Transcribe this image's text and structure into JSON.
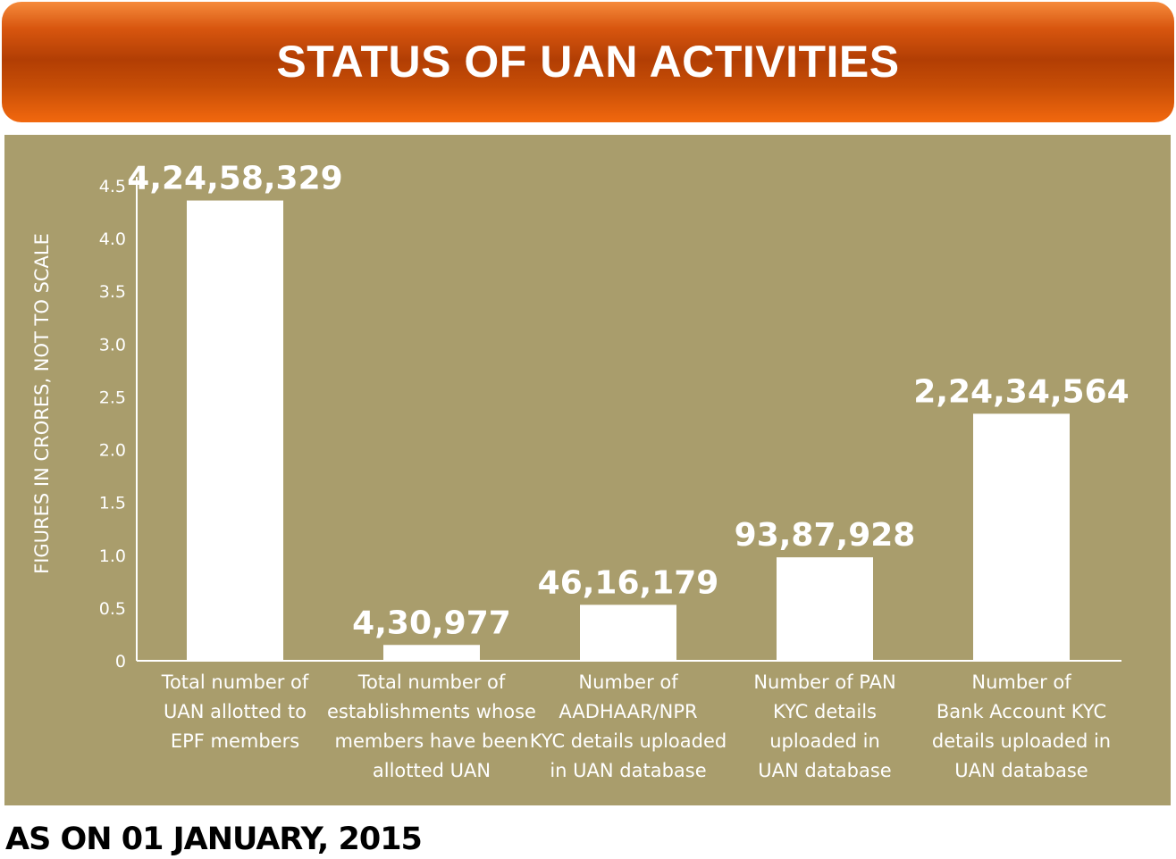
{
  "header": {
    "title": "STATUS OF UAN ACTIVITIES"
  },
  "footnote": "AS ON 01 JANUARY, 2015",
  "colors": {
    "panel": "#a99d6c",
    "bar": "#ffffff",
    "banner_mid": "#b23e04",
    "banner_edge": "#f2680e"
  },
  "chart_data": {
    "type": "bar",
    "title": "STATUS OF UAN ACTIVITIES",
    "ylabel": "FIGURES IN CRORES, NOT TO SCALE",
    "xlabel": "",
    "ylim": [
      0,
      4.5
    ],
    "yticks": [
      "0",
      "0.5",
      "1.0",
      "1.5",
      "2.0",
      "2.5",
      "3.0",
      "3.5",
      "4.0",
      "4.5"
    ],
    "ytick_values": [
      0,
      0.5,
      1.0,
      1.5,
      2.0,
      2.5,
      3.0,
      3.5,
      4.0,
      4.5
    ],
    "grid": false,
    "categories": [
      [
        "Total number of",
        "UAN allotted to",
        "EPF members"
      ],
      [
        "Total number of",
        "establishments whose",
        "members have been",
        "allotted UAN"
      ],
      [
        "Number of",
        "AADHAAR/NPR",
        "KYC details uploaded",
        "in UAN database"
      ],
      [
        "Number of PAN",
        "KYC details",
        "uploaded in",
        "UAN database"
      ],
      [
        "Number of",
        "Bank Account KYC",
        "details uploaded in",
        "UAN database"
      ]
    ],
    "values": [
      4.36,
      0.15,
      0.53,
      0.98,
      2.34
    ],
    "data_labels": [
      "4,24,58,329",
      "4,30,977",
      "46,16,179",
      "93,87,928",
      "2,24,34,564"
    ]
  }
}
